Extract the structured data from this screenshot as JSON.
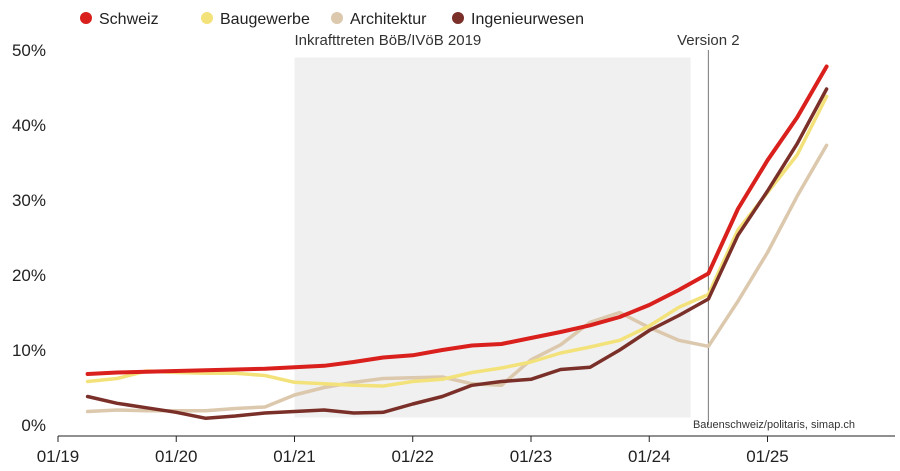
{
  "chart_data": {
    "type": "line",
    "x_tick_labels": [
      "01/19",
      "01/20",
      "01/21",
      "01/22",
      "01/23",
      "01/24",
      "01/25"
    ],
    "y_tick_labels": [
      "0%",
      "10%",
      "20%",
      "30%",
      "40%",
      "50%"
    ],
    "y_ticks": [
      0,
      10,
      20,
      30,
      40,
      50
    ],
    "ylim": [
      0,
      50
    ],
    "xlim": [
      2019.0,
      2025.85
    ],
    "grid": false,
    "legend_position": "top-left",
    "series": [
      {
        "name": "Schweiz",
        "color": "#d9201c",
        "points": [
          [
            2019.25,
            6.8
          ],
          [
            2019.5,
            7.0
          ],
          [
            2019.75,
            7.1
          ],
          [
            2020.0,
            7.2
          ],
          [
            2020.25,
            7.3
          ],
          [
            2020.5,
            7.4
          ],
          [
            2020.75,
            7.5
          ],
          [
            2021.0,
            7.7
          ],
          [
            2021.25,
            7.9
          ],
          [
            2021.5,
            8.4
          ],
          [
            2021.75,
            9.0
          ],
          [
            2022.0,
            9.3
          ],
          [
            2022.25,
            10.0
          ],
          [
            2022.5,
            10.6
          ],
          [
            2022.75,
            10.8
          ],
          [
            2023.0,
            11.6
          ],
          [
            2023.25,
            12.4
          ],
          [
            2023.5,
            13.3
          ],
          [
            2023.75,
            14.4
          ],
          [
            2024.0,
            16.0
          ],
          [
            2024.25,
            18.0
          ],
          [
            2024.5,
            20.2
          ],
          [
            2024.75,
            28.8
          ],
          [
            2025.0,
            35.3
          ],
          [
            2025.25,
            41.0
          ],
          [
            2025.5,
            47.8
          ]
        ]
      },
      {
        "name": "Baugewerbe",
        "color": "#f3e27a",
        "points": [
          [
            2019.25,
            5.8
          ],
          [
            2019.5,
            6.2
          ],
          [
            2019.75,
            7.2
          ],
          [
            2020.0,
            7.0
          ],
          [
            2020.25,
            6.9
          ],
          [
            2020.5,
            6.9
          ],
          [
            2020.75,
            6.6
          ],
          [
            2021.0,
            5.7
          ],
          [
            2021.25,
            5.5
          ],
          [
            2021.5,
            5.3
          ],
          [
            2021.75,
            5.2
          ],
          [
            2022.0,
            5.8
          ],
          [
            2022.25,
            6.1
          ],
          [
            2022.5,
            7.0
          ],
          [
            2022.75,
            7.6
          ],
          [
            2023.0,
            8.4
          ],
          [
            2023.25,
            9.6
          ],
          [
            2023.5,
            10.4
          ],
          [
            2023.75,
            11.3
          ],
          [
            2024.0,
            13.2
          ],
          [
            2024.25,
            15.7
          ],
          [
            2024.5,
            17.4
          ],
          [
            2024.75,
            26.0
          ],
          [
            2025.0,
            31.0
          ],
          [
            2025.25,
            36.0
          ],
          [
            2025.5,
            43.8
          ]
        ]
      },
      {
        "name": "Architektur",
        "color": "#dcc8ad",
        "points": [
          [
            2019.25,
            1.8
          ],
          [
            2019.5,
            2.0
          ],
          [
            2019.75,
            1.9
          ],
          [
            2020.0,
            1.9
          ],
          [
            2020.25,
            1.9
          ],
          [
            2020.5,
            2.2
          ],
          [
            2020.75,
            2.4
          ],
          [
            2021.0,
            4.0
          ],
          [
            2021.25,
            5.0
          ],
          [
            2021.5,
            5.7
          ],
          [
            2021.75,
            6.2
          ],
          [
            2022.0,
            6.3
          ],
          [
            2022.25,
            6.4
          ],
          [
            2022.5,
            5.5
          ],
          [
            2022.75,
            5.3
          ],
          [
            2023.0,
            8.7
          ],
          [
            2023.25,
            10.7
          ],
          [
            2023.5,
            13.7
          ],
          [
            2023.75,
            15.0
          ],
          [
            2024.0,
            13.0
          ],
          [
            2024.25,
            11.3
          ],
          [
            2024.5,
            10.5
          ],
          [
            2024.75,
            16.5
          ],
          [
            2025.0,
            23.0
          ],
          [
            2025.25,
            30.5
          ],
          [
            2025.5,
            37.3
          ]
        ]
      },
      {
        "name": "Ingenieurwesen",
        "color": "#7a3029",
        "points": [
          [
            2019.25,
            3.8
          ],
          [
            2019.5,
            2.9
          ],
          [
            2019.75,
            2.3
          ],
          [
            2020.0,
            1.7
          ],
          [
            2020.25,
            0.9
          ],
          [
            2020.5,
            1.2
          ],
          [
            2020.75,
            1.6
          ],
          [
            2021.0,
            1.8
          ],
          [
            2021.25,
            2.0
          ],
          [
            2021.5,
            1.6
          ],
          [
            2021.75,
            1.7
          ],
          [
            2022.0,
            2.8
          ],
          [
            2022.25,
            3.8
          ],
          [
            2022.5,
            5.3
          ],
          [
            2022.75,
            5.8
          ],
          [
            2023.0,
            6.1
          ],
          [
            2023.25,
            7.4
          ],
          [
            2023.5,
            7.7
          ],
          [
            2023.75,
            10.0
          ],
          [
            2024.0,
            12.6
          ],
          [
            2024.25,
            14.6
          ],
          [
            2024.5,
            16.8
          ],
          [
            2024.75,
            25.3
          ],
          [
            2025.0,
            31.2
          ],
          [
            2025.25,
            37.5
          ],
          [
            2025.5,
            44.8
          ]
        ]
      }
    ],
    "annotations": {
      "shaded_range": {
        "x_start": 2021.0,
        "x_end": 2024.35,
        "y_start": 1.0,
        "y_end": 49.0,
        "label": "Inkrafttreten BöB/IVöB 2019",
        "color": "#f0f0f0"
      },
      "vertical_line": {
        "x": 2024.5,
        "label": "Version 2",
        "color": "#777777"
      }
    },
    "source": "Bauenschweiz/politaris, simap.ch"
  }
}
